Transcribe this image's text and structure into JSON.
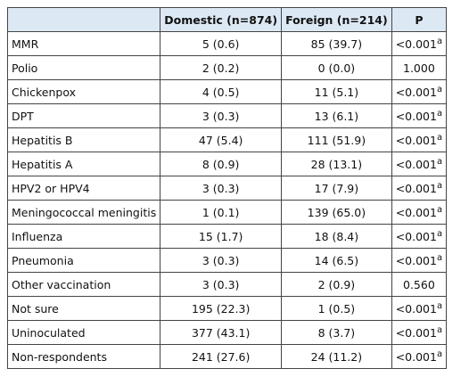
{
  "table": {
    "header": [
      "",
      "Domestic (n=874)",
      "Foreign (n=214)",
      "P"
    ],
    "rows": [
      {
        "label": "MMR",
        "domestic": "5 (0.6)",
        "foreign": "85 (39.7)",
        "p": "<0.001",
        "note": "a"
      },
      {
        "label": "Polio",
        "domestic": "2 (0.2)",
        "foreign": "0 (0.0)",
        "p": "1.000"
      },
      {
        "label": "Chickenpox",
        "domestic": "4 (0.5)",
        "foreign": "11 (5.1)",
        "p": "<0.001",
        "note": "a"
      },
      {
        "label": "DPT",
        "domestic": "3 (0.3)",
        "foreign": "13 (6.1)",
        "p": "<0.001",
        "note": "a"
      },
      {
        "label": "Hepatitis B",
        "domestic": "47 (5.4)",
        "foreign": "111 (51.9)",
        "p": "<0.001",
        "note": "a"
      },
      {
        "label": "Hepatitis A",
        "domestic": "8 (0.9)",
        "foreign": "28 (13.1)",
        "p": "<0.001",
        "note": "a"
      },
      {
        "label": "HPV2 or HPV4",
        "domestic": "3 (0.3)",
        "foreign": "17 (7.9)",
        "p": "<0.001",
        "note": "a"
      },
      {
        "label": "Meningococcal meningitis",
        "domestic": "1 (0.1)",
        "foreign": "139 (65.0)",
        "p": "<0.001",
        "note": "a"
      },
      {
        "label": "Influenza",
        "domestic": "15 (1.7)",
        "foreign": "18 (8.4)",
        "p": "<0.001",
        "note": "a"
      },
      {
        "label": "Pneumonia",
        "domestic": "3 (0.3)",
        "foreign": "14 (6.5)",
        "p": "<0.001",
        "note": "a"
      },
      {
        "label": "Other vaccination",
        "domestic": "3 (0.3)",
        "foreign": "2 (0.9)",
        "p": "0.560"
      },
      {
        "label": "Not sure",
        "domestic": "195 (22.3)",
        "foreign": "1 (0.5)",
        "p": "<0.001",
        "note": "a"
      },
      {
        "label": "Uninoculated",
        "domestic": "377 (43.1)",
        "foreign": "8 (3.7)",
        "p": "<0.001",
        "note": "a"
      },
      {
        "label": "Non-respondents",
        "domestic": "241 (27.6)",
        "foreign": "24 (11.2)",
        "p": "<0.001",
        "note": "a"
      }
    ]
  }
}
